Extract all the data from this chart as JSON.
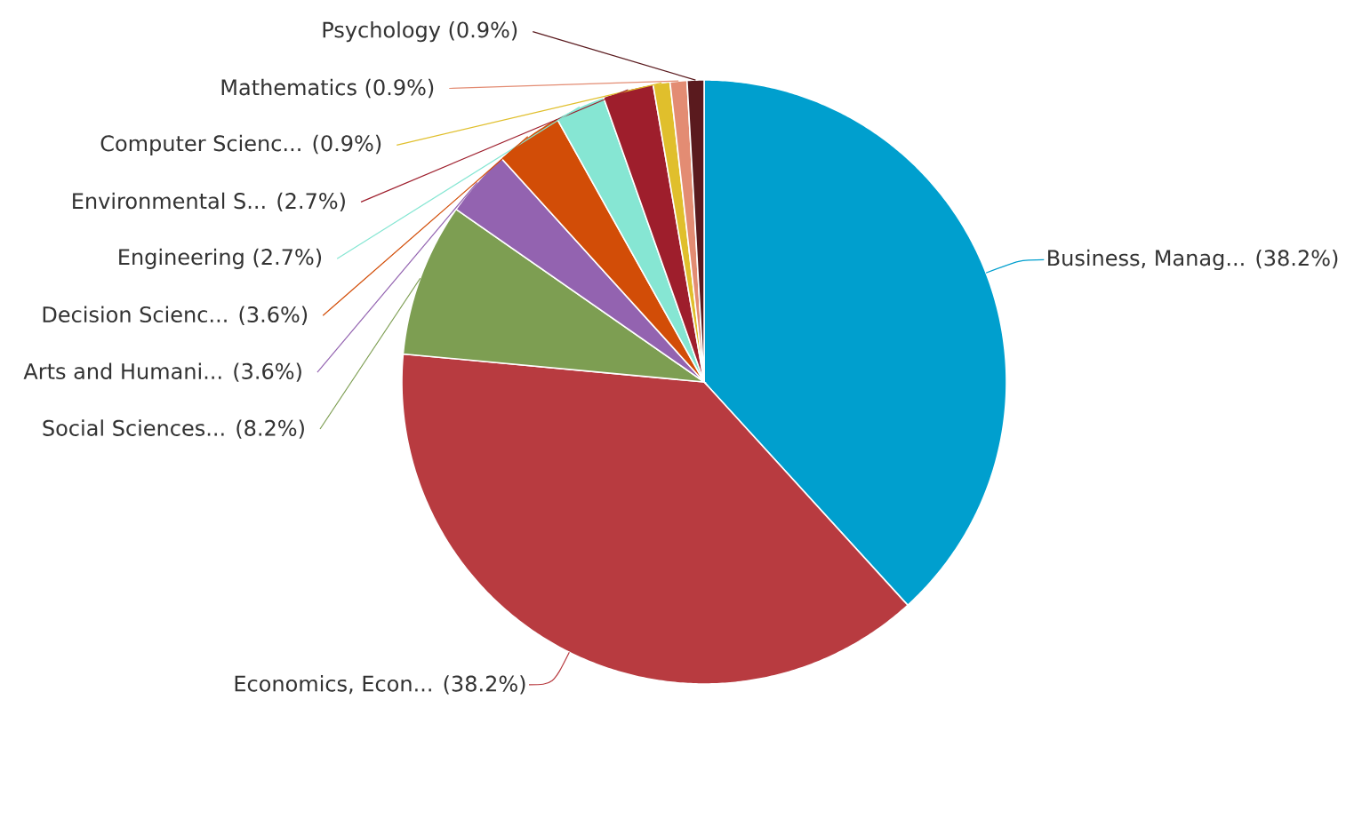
{
  "chart_data": {
    "type": "pie",
    "categories": [
      "Business, Manag...",
      "Economics, Econ...",
      "Social Sciences...",
      "Arts and Humani...",
      "Decision Scienc...",
      "Engineering",
      "Environmental S...",
      "Computer Scienc...",
      "Mathematics",
      "Psychology"
    ],
    "values": [
      38.2,
      38.2,
      8.2,
      3.6,
      3.6,
      2.7,
      2.7,
      0.9,
      0.9,
      0.9
    ],
    "value_labels": [
      "(38.2%)",
      "(38.2%)",
      "(8.2%)",
      "(3.6%)",
      "(3.6%)",
      "(2.7%)",
      "(2.7%)",
      "(0.9%)",
      "(0.9%)",
      "(0.9%)"
    ],
    "colors": [
      "#009fce",
      "#b83b40",
      "#7d9e52",
      "#9363b0",
      "#d24d07",
      "#86e6d3",
      "#9e1e2c",
      "#e0bf2c",
      "#e38c73",
      "#5a1a1e"
    ]
  }
}
